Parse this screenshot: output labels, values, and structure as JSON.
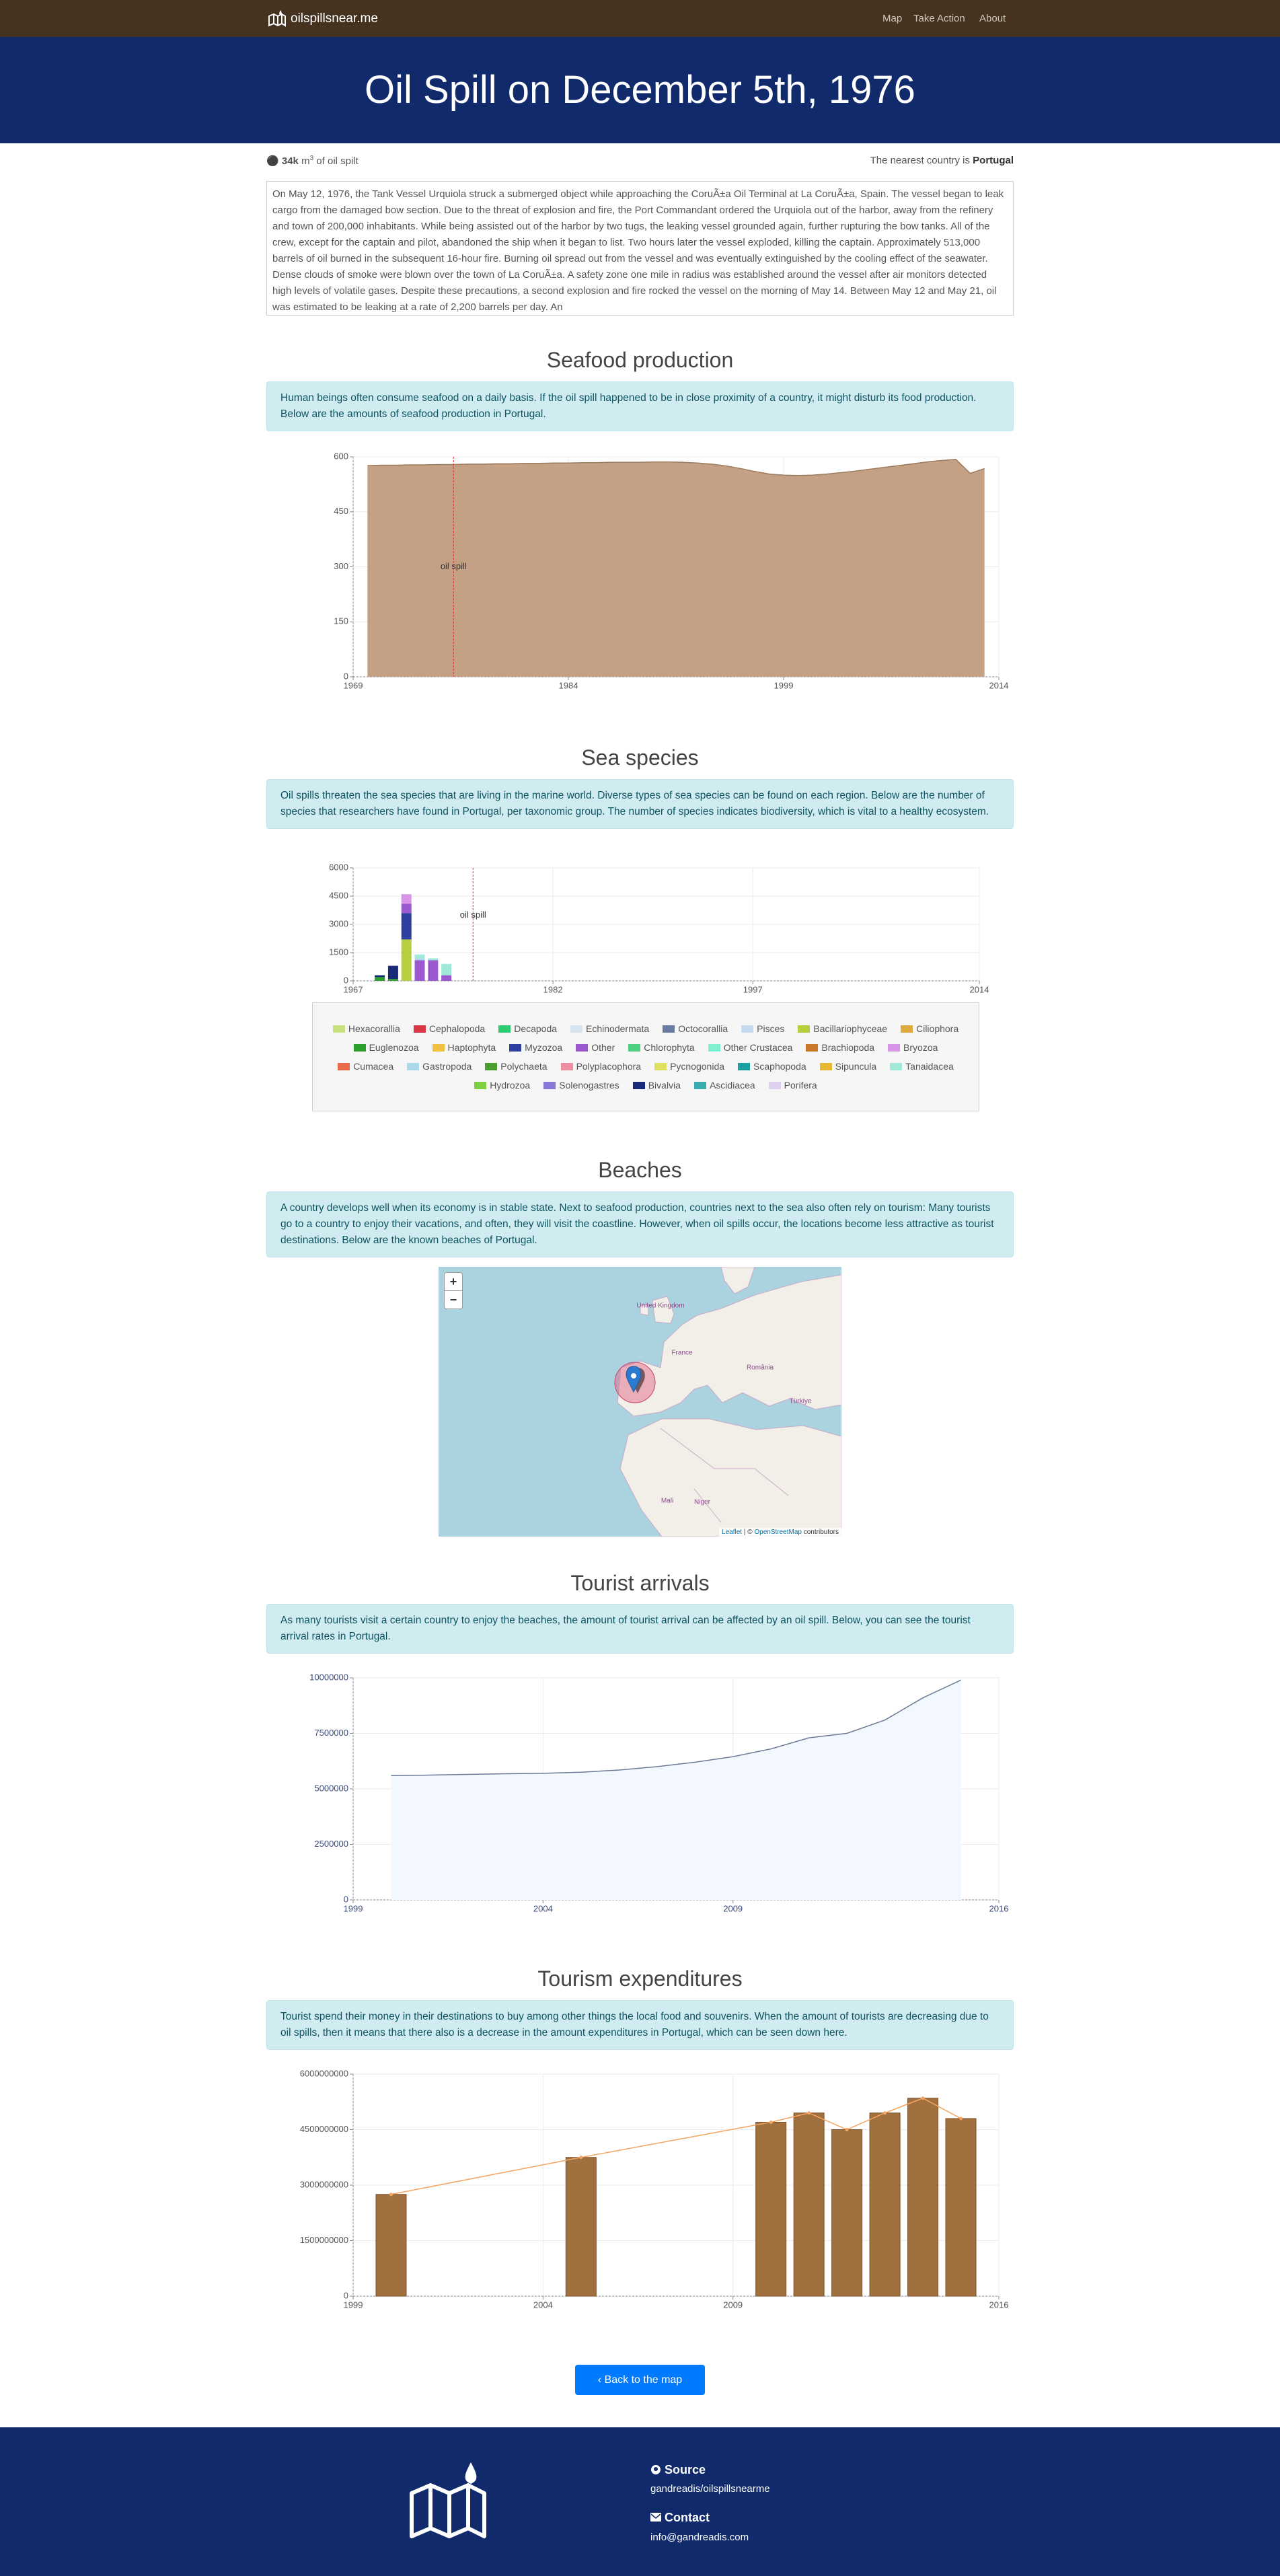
{
  "nav": {
    "brand": "oilspillsnear.me",
    "links": [
      "Map",
      "Take Action",
      "About"
    ]
  },
  "hero": {
    "title": "Oil Spill on December 5th, 1976"
  },
  "info": {
    "amount": "34k",
    "unit": "m",
    "unit_power": "3",
    "suffix": "of oil spilt",
    "nearest_prefix": "The nearest country is",
    "nearest_country": "Portugal"
  },
  "description": "On May 12, 1976, the Tank Vessel Urquiola struck a submerged object while approaching the CoruÃ±a Oil Terminal at La CoruÃ±a, Spain. The vessel began to leak cargo from the damaged bow section. Due to the threat of explosion and fire, the Port Commandant ordered the Urquiola out of the harbor, away from the refinery and town of 200,000 inhabitants. While being assisted out of the harbor by two tugs, the leaking vessel grounded again, further rupturing the bow tanks. All of the crew, except for the captain and pilot, abandoned the ship when it began to list. Two hours later the vessel exploded, killing the captain. Approximately 513,000 barrels of oil burned in the subsequent 16-hour fire. Burning oil spread out from the vessel and was eventually extinguished by the cooling effect of the seawater. Dense clouds of smoke were blown over the town of La CoruÃ±a. A safety zone one mile in radius was established around the vessel after air monitors detected high levels of volatile gases. Despite these precautions, a second explosion and fire rocked the vessel on the morning of May 14. Between May 12 and May 21, oil was estimated to be leaking at a rate of 2,200 barrels per day. An",
  "sections": [
    {
      "heading": "Seafood production",
      "text": "Human beings often consume seafood on a daily basis. If the oil spill happened to be in close proximity of a country, it might disturb its food production. Below are the amounts of seafood production in Portugal.",
      "chart": {
        "type": "area",
        "color": "#c4a184",
        "line_color": "#9c7a5c",
        "grid": true,
        "annotation": "oil spill",
        "spill_year": 1976,
        "xlim": [
          1969,
          2014
        ],
        "xticks": [
          1969,
          1984,
          1999,
          2014
        ],
        "ylim": [
          0,
          600
        ],
        "yticks": [
          0,
          150,
          300,
          450,
          600
        ],
        "x": [
          1970,
          1971,
          1972,
          1973,
          1974,
          1975,
          1976,
          1977,
          1978,
          1979,
          1980,
          1981,
          1982,
          1983,
          1984,
          1985,
          1986,
          1987,
          1988,
          1989,
          1990,
          1991,
          1992,
          1993,
          1994,
          1995,
          1996,
          1997,
          1998,
          1999,
          2000,
          2001,
          2002,
          2003,
          2004,
          2005,
          2006,
          2007,
          2008,
          2009,
          2010,
          2011,
          2012,
          2013
        ],
        "values": [
          576,
          577,
          577,
          578,
          578,
          579,
          579,
          580,
          580,
          581,
          581,
          582,
          582,
          583,
          583,
          584,
          584,
          585,
          585,
          585,
          586,
          586,
          585,
          583,
          580,
          575,
          568,
          560,
          553,
          550,
          549,
          550,
          553,
          557,
          561,
          566,
          571,
          576,
          581,
          586,
          590,
          593,
          555,
          568
        ]
      }
    },
    {
      "heading": "Sea species",
      "text": "Oil spills threaten the sea species that are living in the marine world. Diverse types of sea species can be found on each region. Below are the number of species that researchers have found in Portugal, per taxonomic group. The number of species indicates biodiversity, which is vital to a healthy ecosystem.",
      "chart": {
        "type": "stacked_bar",
        "grid": true,
        "annotation": "oil spill",
        "spill_year": 1976,
        "xlim": [
          1967,
          2014
        ],
        "xticks": [
          1967,
          1982,
          1997,
          2014
        ],
        "ylim": [
          0,
          6000
        ],
        "yticks": [
          0,
          1500,
          3000,
          4500,
          6000
        ],
        "x": [
          1969,
          1970,
          1971,
          1972,
          1973,
          1974
        ],
        "series": [
          {
            "name": "Hexacorallia",
            "color": "#c8e07e",
            "values": [
              0,
              0,
              0,
              0,
              0,
              0
            ]
          },
          {
            "name": "Cephalopoda",
            "color": "#dc3545",
            "values": [
              0,
              0,
              0,
              0,
              0,
              0
            ]
          },
          {
            "name": "Decapoda",
            "color": "#2ecc71",
            "values": [
              0,
              0,
              0,
              0,
              0,
              0
            ]
          },
          {
            "name": "Echinodermata",
            "color": "#d6e4f0",
            "values": [
              0,
              0,
              0,
              0,
              0,
              0
            ]
          },
          {
            "name": "Octocorallia",
            "color": "#6a7ba2",
            "values": [
              0,
              0,
              0,
              0,
              0,
              0
            ]
          },
          {
            "name": "Pisces",
            "color": "#c6dbef",
            "values": [
              0,
              0,
              0,
              0,
              0,
              0
            ]
          },
          {
            "name": "Bacillariophyceae",
            "color": "#b5cf3e",
            "values": [
              0,
              0,
              2200,
              0,
              0,
              0
            ]
          },
          {
            "name": "Ciliophora",
            "color": "#e0a93b",
            "values": [
              0,
              0,
              0,
              0,
              0,
              0
            ]
          },
          {
            "name": "Euglenozoa",
            "color": "#2ea02e",
            "values": [
              200,
              100,
              0,
              0,
              0,
              0
            ]
          },
          {
            "name": "Haptophyta",
            "color": "#f0c040",
            "values": [
              0,
              0,
              0,
              0,
              0,
              0
            ]
          },
          {
            "name": "Myzozoa",
            "color": "#2c3e9e",
            "values": [
              0,
              0,
              1400,
              0,
              0,
              0
            ]
          },
          {
            "name": "Other",
            "color": "#9b59d0",
            "values": [
              0,
              0,
              500,
              1100,
              1100,
              300
            ]
          },
          {
            "name": "Chlorophyta",
            "color": "#4cd080",
            "values": [
              0,
              0,
              0,
              0,
              0,
              0
            ]
          },
          {
            "name": "Other Crustacea",
            "color": "#7ff0d0",
            "values": [
              0,
              0,
              0,
              0,
              0,
              0
            ]
          },
          {
            "name": "Brachiopoda",
            "color": "#c87828",
            "values": [
              0,
              0,
              0,
              0,
              0,
              0
            ]
          },
          {
            "name": "Bryozoa",
            "color": "#d895e8",
            "values": [
              0,
              0,
              500,
              0,
              0,
              0
            ]
          },
          {
            "name": "Cumacea",
            "color": "#e86a4a",
            "values": [
              0,
              0,
              0,
              0,
              0,
              0
            ]
          },
          {
            "name": "Gastropoda",
            "color": "#a8d8ea",
            "values": [
              0,
              0,
              0,
              100,
              0,
              0
            ]
          },
          {
            "name": "Polychaeta",
            "color": "#4a9e2e",
            "values": [
              0,
              0,
              0,
              0,
              0,
              0
            ]
          },
          {
            "name": "Polyplacophora",
            "color": "#f08ca0",
            "values": [
              0,
              0,
              0,
              0,
              0,
              0
            ]
          },
          {
            "name": "Pycnogonida",
            "color": "#e0e060",
            "values": [
              0,
              0,
              0,
              0,
              0,
              0
            ]
          },
          {
            "name": "Scaphopoda",
            "color": "#1aa0a0",
            "values": [
              0,
              0,
              0,
              0,
              0,
              0
            ]
          },
          {
            "name": "Sipuncula",
            "color": "#e8b830",
            "values": [
              0,
              0,
              0,
              0,
              0,
              0
            ]
          },
          {
            "name": "Tanaidacea",
            "color": "#a0e8d8",
            "values": [
              0,
              0,
              0,
              200,
              100,
              600
            ]
          },
          {
            "name": "Hydrozoa",
            "color": "#7ed040",
            "values": [
              0,
              0,
              0,
              0,
              0,
              0
            ]
          },
          {
            "name": "Solenogastres",
            "color": "#8878d8",
            "values": [
              0,
              0,
              0,
              0,
              0,
              0
            ]
          },
          {
            "name": "Bivalvia",
            "color": "#1a2a7a",
            "values": [
              100,
              700,
              0,
              0,
              0,
              0
            ]
          },
          {
            "name": "Ascidiacea",
            "color": "#3aacb0",
            "values": [
              0,
              0,
              0,
              0,
              0,
              0
            ]
          },
          {
            "name": "Porifera",
            "color": "#e0d0f0",
            "values": [
              0,
              0,
              0,
              0,
              0,
              0
            ]
          }
        ]
      }
    },
    {
      "heading": "Beaches",
      "text": "A country develops well when its economy is in stable state. Next to seafood production, countries next to the sea also often rely on tourism: Many tourists go to a country to enjoy their vacations, and often, they will visit the coastline. However, when oil spills occur, the locations become less attractive as tourist destinations. Below are the known beaches of Portugal.",
      "map": {
        "zoom_in": "+",
        "zoom_out": "−",
        "labels": [
          "United Kingdom",
          "France",
          "România",
          "Türkiye",
          "Mali",
          "Niger"
        ],
        "attribution": [
          "Leaflet",
          "| ©",
          "OpenStreetMap",
          "contributors"
        ]
      }
    },
    {
      "heading": "Tourist arrivals",
      "text": "As many tourists visit a certain country to enjoy the beaches, the amount of tourist arrival can be affected by an oil spill. Below, you can see the tourist arrival rates in Portugal.",
      "chart": {
        "type": "area",
        "color": "#f3f8fe",
        "line_color": "#6c7a96",
        "grid": true,
        "xlim": [
          1999,
          2016
        ],
        "xticks": [
          1999,
          2004,
          2009,
          2016
        ],
        "ylim": [
          0,
          10000000
        ],
        "yticks": [
          0,
          2500000,
          5000000,
          7500000,
          10000000
        ],
        "x": [
          2000,
          2001,
          2002,
          2003,
          2004,
          2005,
          2006,
          2007,
          2008,
          2009,
          2010,
          2011,
          2012,
          2013,
          2014,
          2015
        ],
        "values": [
          5600000,
          5620000,
          5650000,
          5680000,
          5700000,
          5750000,
          5850000,
          6000000,
          6200000,
          6450000,
          6800000,
          7300000,
          7500000,
          8100000,
          9100000,
          9900000
        ]
      }
    },
    {
      "heading": "Tourism expenditures",
      "text": "Tourist spend their money in their destinations to buy among other things the local food and souvenirs. When the amount of tourists are decreasing due to oil spills, then it means that there also is a decrease in the amount expenditures in Portugal, which can be seen down here.",
      "chart": {
        "type": "bar_line",
        "color": "#a0703f",
        "line_color": "#f4a460",
        "grid": true,
        "xlim": [
          1999,
          2016
        ],
        "xticks": [
          1999,
          2004,
          2009,
          2016
        ],
        "ylim": [
          0,
          6000000000
        ],
        "yticks": [
          0,
          1500000000,
          3000000000,
          4500000000,
          6000000000
        ],
        "x": [
          2000,
          2005,
          2010,
          2011,
          2012,
          2013,
          2014,
          2015
        ],
        "values": [
          2750000000,
          3750000000,
          4700000000,
          4950000000,
          4500000000,
          4950000000,
          5350000000,
          4800000000
        ]
      }
    }
  ],
  "back_button": "Back to the map",
  "footer": {
    "source_title": "Source",
    "source_text": "gandreadis/oilspillsnearme",
    "contact_title": "Contact",
    "contact_text": "info@gandreadis.com"
  }
}
